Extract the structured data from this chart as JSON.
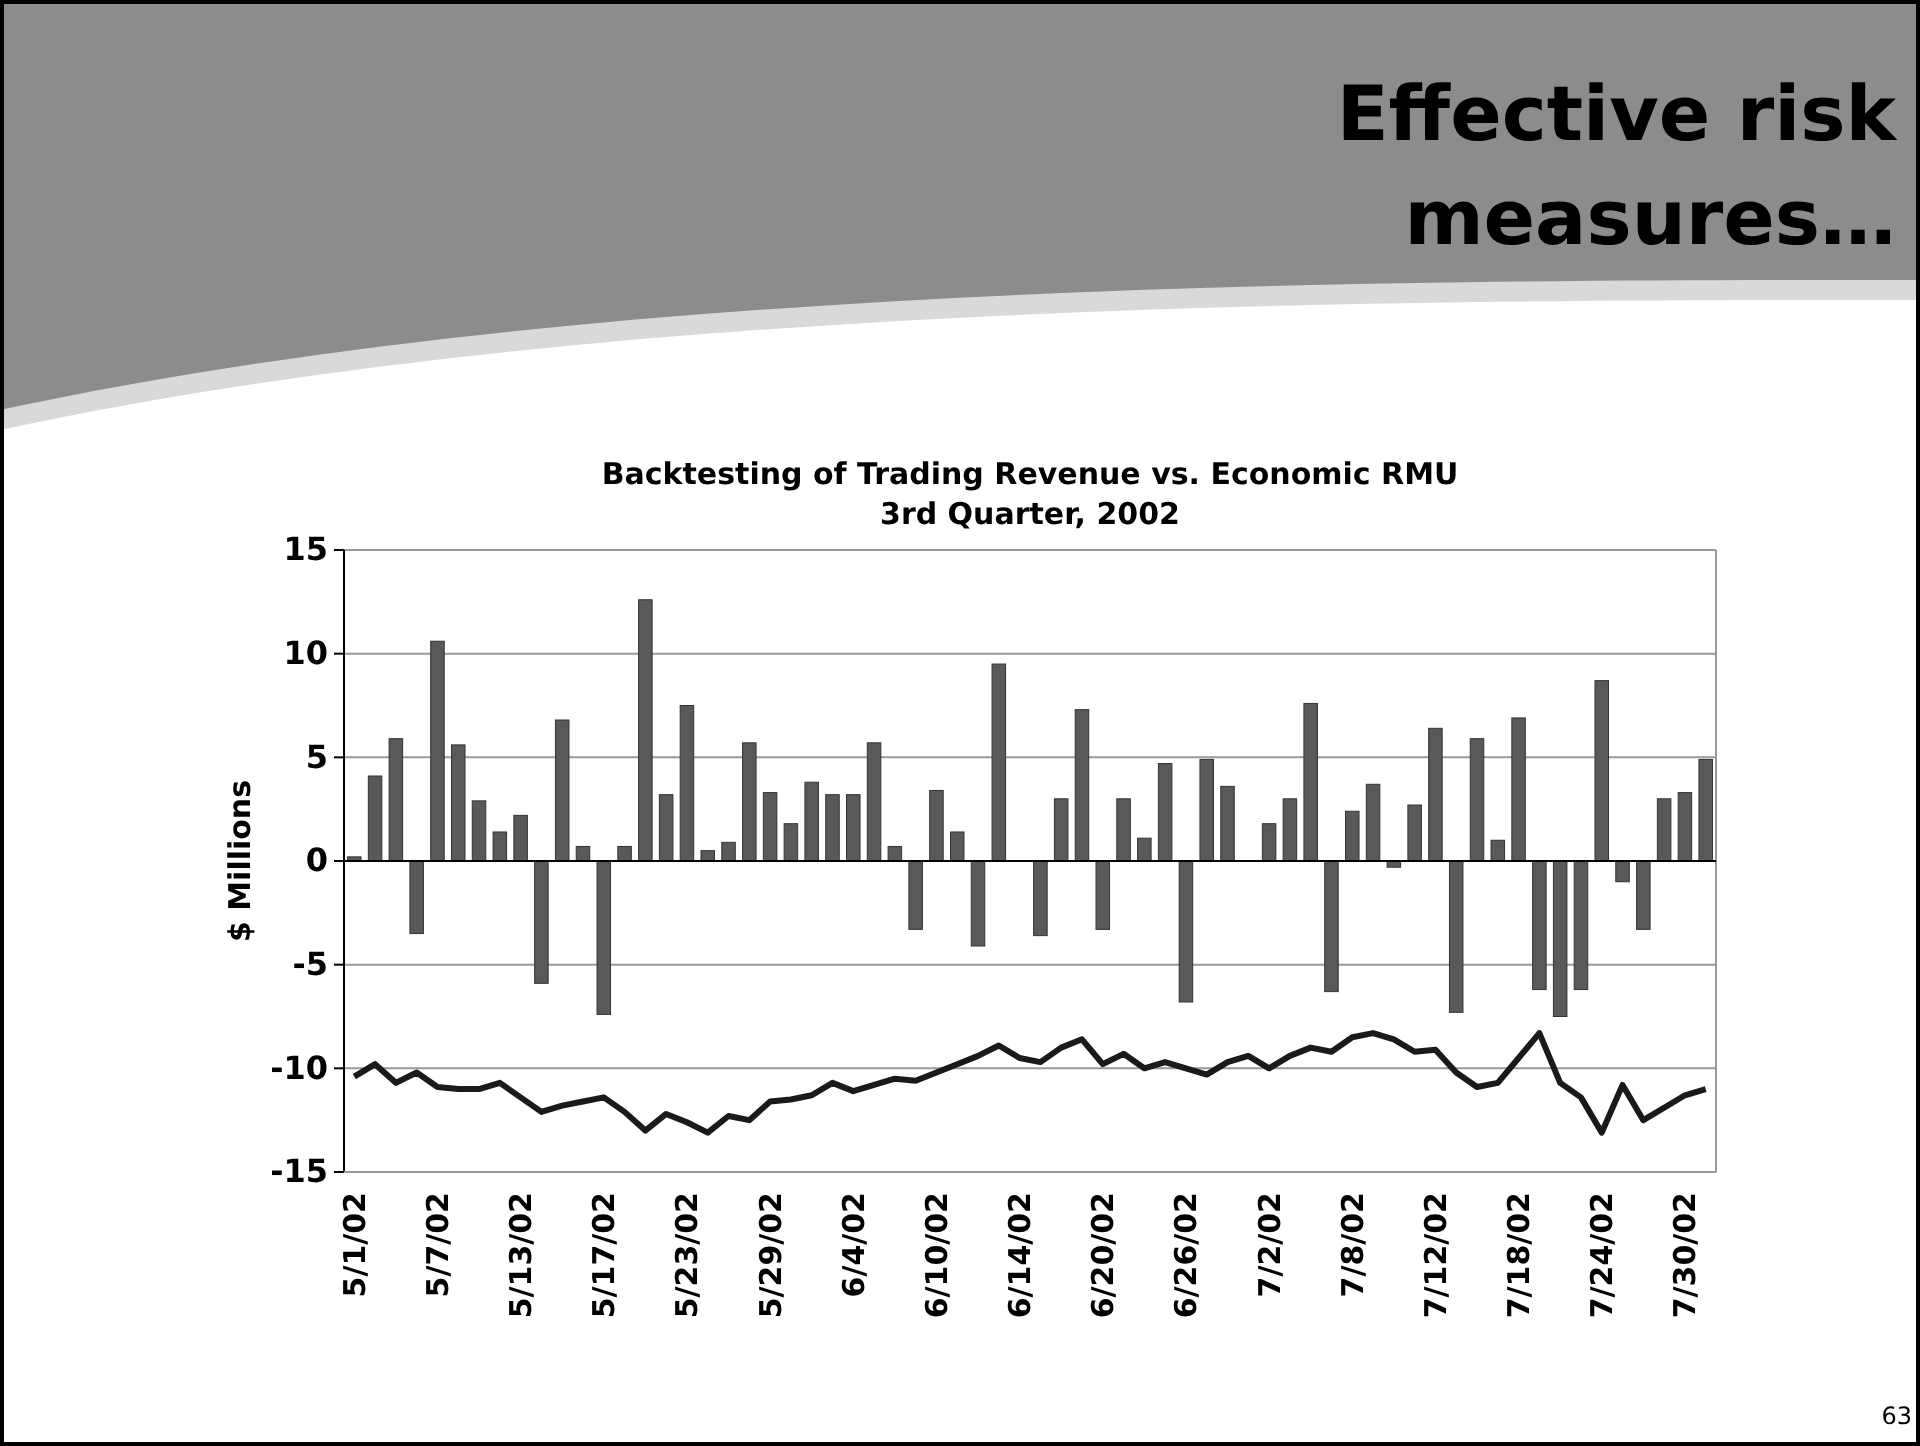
{
  "chart_data": {
    "type": "bar",
    "title": "Backtesting of Trading Revenue vs. Economic RMU",
    "subtitle": "3rd Quarter, 2002",
    "ylabel": "$ Millions",
    "annotations": [
      "Effective risk measures…",
      "63"
    ],
    "categories": [
      "5/1/02",
      null,
      null,
      null,
      "5/7/02",
      null,
      null,
      null,
      "5/13/02",
      null,
      null,
      null,
      "5/17/02",
      null,
      null,
      null,
      "5/23/02",
      null,
      null,
      null,
      "5/29/02",
      null,
      null,
      null,
      "6/4/02",
      null,
      null,
      null,
      "6/10/02",
      null,
      null,
      null,
      "6/14/02",
      null,
      null,
      null,
      "6/20/02",
      null,
      null,
      null,
      "6/26/02",
      null,
      null,
      null,
      "7/2/02",
      null,
      null,
      null,
      "7/8/02",
      null,
      null,
      null,
      "7/12/02",
      null,
      null,
      null,
      "7/18/02",
      null,
      null,
      null,
      "7/24/02",
      null,
      null,
      null,
      "7/30/02",
      null
    ],
    "series": [
      {
        "color": "#595959",
        "values": [
          0.2,
          4.1,
          5.9,
          -3.5,
          10.6,
          5.6,
          2.9,
          1.4,
          2.2,
          -5.9,
          6.8,
          0.7,
          -7.4,
          0.7,
          12.6,
          3.2,
          7.5,
          0.5,
          0.9,
          5.7,
          3.3,
          1.8,
          3.8,
          3.2,
          3.2,
          5.7,
          0.7,
          -3.3,
          3.4,
          1.4,
          -4.1,
          9.5,
          0,
          -3.6,
          3.0,
          7.3,
          -3.3,
          3.0,
          1.1,
          4.7,
          -6.8,
          4.9,
          3.6,
          0,
          1.8,
          3.0,
          7.6,
          -6.3,
          2.4,
          3.7,
          -0.3,
          2.7,
          6.4,
          -7.3,
          5.9,
          1.0,
          6.9,
          -6.2,
          -7.5,
          -6.2,
          8.7,
          -1.0,
          -3.3,
          3.0,
          3.3,
          4.9
        ]
      },
      {
        "type": "line",
        "color": "#1a1a1a",
        "values": [
          -10.4,
          -9.8,
          -10.7,
          -10.2,
          -10.9,
          -11.0,
          -11.0,
          -10.7,
          -11.4,
          -12.1,
          -11.8,
          -11.6,
          -11.4,
          -12.1,
          -13.0,
          -12.2,
          -12.6,
          -13.1,
          -12.3,
          -12.5,
          -11.6,
          -11.5,
          -11.3,
          -10.7,
          -11.1,
          -10.8,
          -10.5,
          -10.6,
          -10.2,
          -9.8,
          -9.4,
          -8.9,
          -9.5,
          -9.7,
          -9.0,
          -8.6,
          -9.8,
          -9.3,
          -10.0,
          -9.7,
          -10.0,
          -10.3,
          -9.7,
          -9.4,
          -10.0,
          -9.4,
          -9.0,
          -9.2,
          -8.5,
          -8.3,
          -8.6,
          -9.2,
          -9.1,
          -10.2,
          -10.9,
          -10.7,
          -9.5,
          -8.3,
          -10.7,
          -11.4,
          -13.1,
          -10.8,
          -12.5,
          -11.9,
          -11.3,
          -11.0
        ]
      }
    ],
    "ylim": [
      -15,
      15
    ],
    "yticks": [
      -15,
      -10,
      -5,
      0,
      5,
      10,
      15
    ],
    "grid": "y",
    "marker": "none",
    "line_style": "solid"
  }
}
